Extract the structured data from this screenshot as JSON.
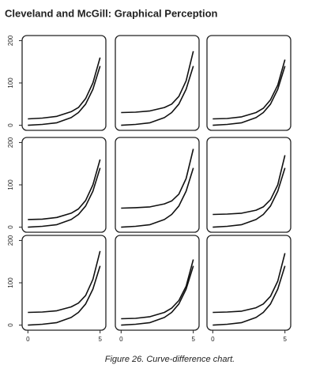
{
  "title": "Cleveland and McGill: Graphical Perception",
  "caption": "Figure 26. Curve-difference chart.",
  "chart_data": [
    {
      "type": "line",
      "x": [
        0,
        1,
        2,
        3,
        3.5,
        4,
        4.5,
        5
      ],
      "xlim": [
        -0.4,
        5.4
      ],
      "ylim": [
        -12,
        212
      ],
      "yticks": [
        0,
        100,
        200
      ],
      "series": [
        {
          "color": "#111111",
          "values": [
            0,
            2,
            6,
            18,
            30,
            50,
            85,
            140
          ]
        },
        {
          "color": "#111111",
          "values": [
            15,
            17,
            21,
            32,
            42,
            63,
            100,
            160
          ]
        }
      ]
    },
    {
      "type": "line",
      "x": [
        0,
        1,
        2,
        3,
        3.5,
        4,
        4.5,
        5
      ],
      "xlim": [
        -0.4,
        5.4
      ],
      "ylim": [
        -12,
        212
      ],
      "series": [
        {
          "color": "#111111",
          "values": [
            0,
            2,
            6,
            18,
            30,
            50,
            85,
            140
          ]
        },
        {
          "color": "#111111",
          "values": [
            30,
            31,
            34,
            42,
            50,
            68,
            105,
            175
          ]
        }
      ]
    },
    {
      "type": "line",
      "x": [
        0,
        1,
        2,
        3,
        3.5,
        4,
        4.5,
        5
      ],
      "xlim": [
        -0.4,
        5.4
      ],
      "ylim": [
        -12,
        212
      ],
      "series": [
        {
          "color": "#111111",
          "values": [
            0,
            2,
            6,
            18,
            30,
            50,
            85,
            140
          ]
        },
        {
          "color": "#111111",
          "values": [
            15,
            16,
            20,
            30,
            40,
            60,
            95,
            155
          ]
        }
      ]
    },
    {
      "type": "line",
      "x": [
        0,
        1,
        2,
        3,
        3.5,
        4,
        4.5,
        5
      ],
      "xlim": [
        -0.4,
        5.4
      ],
      "ylim": [
        -12,
        212
      ],
      "yticks": [
        0,
        100,
        200
      ],
      "series": [
        {
          "color": "#111111",
          "values": [
            0,
            2,
            6,
            18,
            30,
            50,
            85,
            140
          ]
        },
        {
          "color": "#111111",
          "values": [
            18,
            19,
            23,
            33,
            43,
            63,
            100,
            160
          ]
        }
      ]
    },
    {
      "type": "line",
      "x": [
        0,
        1,
        2,
        3,
        3.5,
        4,
        4.5,
        5
      ],
      "xlim": [
        -0.4,
        5.4
      ],
      "ylim": [
        -12,
        212
      ],
      "series": [
        {
          "color": "#111111",
          "values": [
            0,
            2,
            6,
            18,
            30,
            50,
            85,
            140
          ]
        },
        {
          "color": "#111111",
          "values": [
            45,
            46,
            48,
            55,
            62,
            78,
            115,
            185
          ]
        }
      ]
    },
    {
      "type": "line",
      "x": [
        0,
        1,
        2,
        3,
        3.5,
        4,
        4.5,
        5
      ],
      "xlim": [
        -0.4,
        5.4
      ],
      "ylim": [
        -12,
        212
      ],
      "series": [
        {
          "color": "#111111",
          "values": [
            0,
            2,
            6,
            18,
            30,
            50,
            85,
            140
          ]
        },
        {
          "color": "#111111",
          "values": [
            30,
            31,
            33,
            40,
            48,
            65,
            100,
            170
          ]
        }
      ]
    },
    {
      "type": "line",
      "x": [
        0,
        1,
        2,
        3,
        3.5,
        4,
        4.5,
        5
      ],
      "xlim": [
        -0.4,
        5.4
      ],
      "ylim": [
        -12,
        212
      ],
      "yticks": [
        0,
        100,
        200
      ],
      "xticks": [
        0,
        5
      ],
      "series": [
        {
          "color": "#111111",
          "values": [
            0,
            2,
            6,
            18,
            30,
            50,
            85,
            140
          ]
        },
        {
          "color": "#111111",
          "values": [
            30,
            31,
            34,
            43,
            52,
            70,
            108,
            175
          ]
        }
      ]
    },
    {
      "type": "line",
      "x": [
        0,
        1,
        2,
        3,
        3.5,
        4,
        4.5,
        5
      ],
      "xlim": [
        -0.4,
        5.4
      ],
      "ylim": [
        -12,
        212
      ],
      "xticks": [
        0,
        5
      ],
      "series": [
        {
          "color": "#111111",
          "values": [
            0,
            2,
            6,
            18,
            30,
            50,
            85,
            140
          ]
        },
        {
          "color": "#111111",
          "values": [
            15,
            16,
            20,
            30,
            40,
            58,
            92,
            155
          ]
        }
      ]
    },
    {
      "type": "line",
      "x": [
        0,
        1,
        2,
        3,
        3.5,
        4,
        4.5,
        5
      ],
      "xlim": [
        -0.4,
        5.4
      ],
      "ylim": [
        -12,
        212
      ],
      "xticks": [
        0,
        5
      ],
      "series": [
        {
          "color": "#111111",
          "values": [
            0,
            2,
            6,
            18,
            30,
            50,
            85,
            140
          ]
        },
        {
          "color": "#111111",
          "values": [
            30,
            31,
            33,
            41,
            50,
            68,
            104,
            170
          ]
        }
      ]
    }
  ]
}
